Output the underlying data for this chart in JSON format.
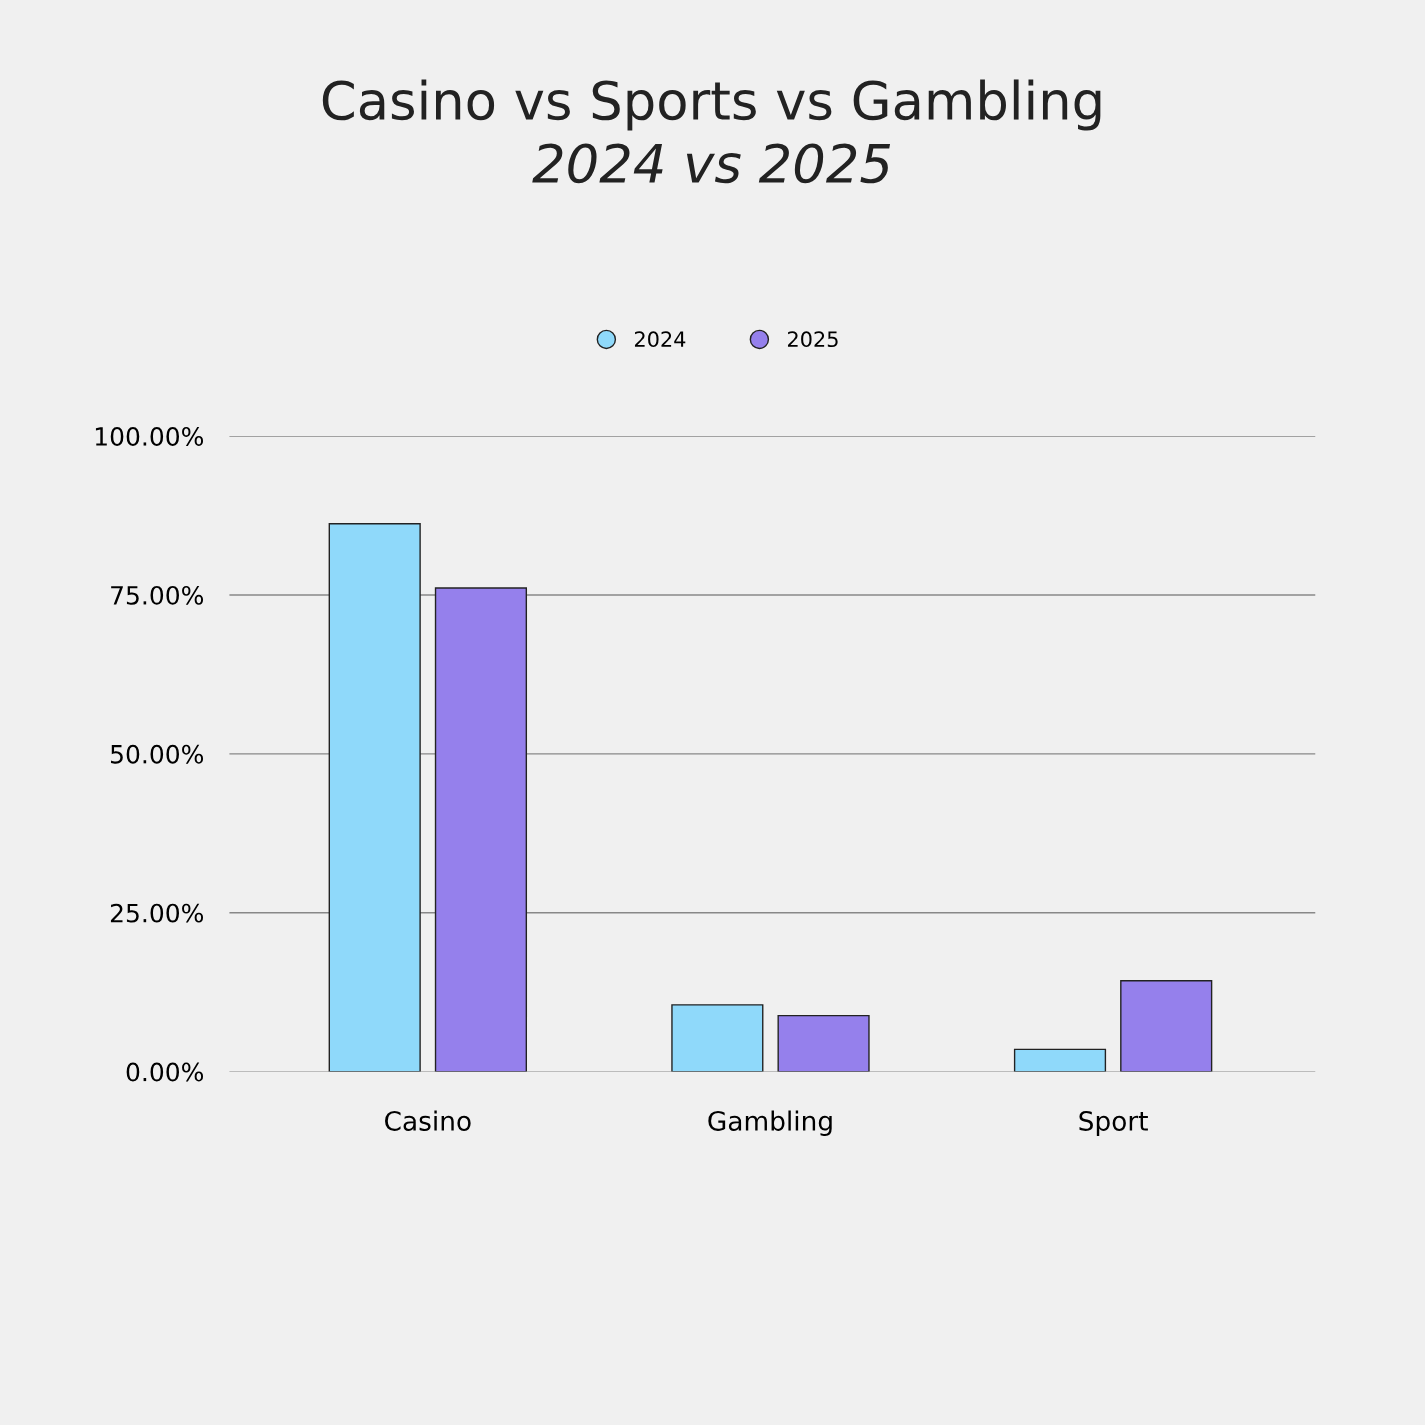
{
  "chart_data": {
    "type": "bar",
    "title": "Casino vs Sports vs Gambling",
    "subtitle": "2024 vs 2025",
    "categories": [
      "Casino",
      "Gambling",
      "Sport"
    ],
    "series": [
      {
        "name": "2024",
        "color": "#8fd9fa",
        "values": [
          86.2,
          10.5,
          3.5
        ]
      },
      {
        "name": "2025",
        "color": "#9580ec",
        "values": [
          76.1,
          8.8,
          14.3
        ]
      }
    ],
    "ylim": [
      0,
      100
    ],
    "yticks": [
      {
        "value": 0,
        "label": "0.00%"
      },
      {
        "value": 25,
        "label": "25.00%"
      },
      {
        "value": 50,
        "label": "50.00%"
      },
      {
        "value": 75,
        "label": "75.00%"
      },
      {
        "value": 100,
        "label": "100.00%"
      }
    ],
    "grid": "y",
    "legend": "top",
    "marker": "circle"
  }
}
